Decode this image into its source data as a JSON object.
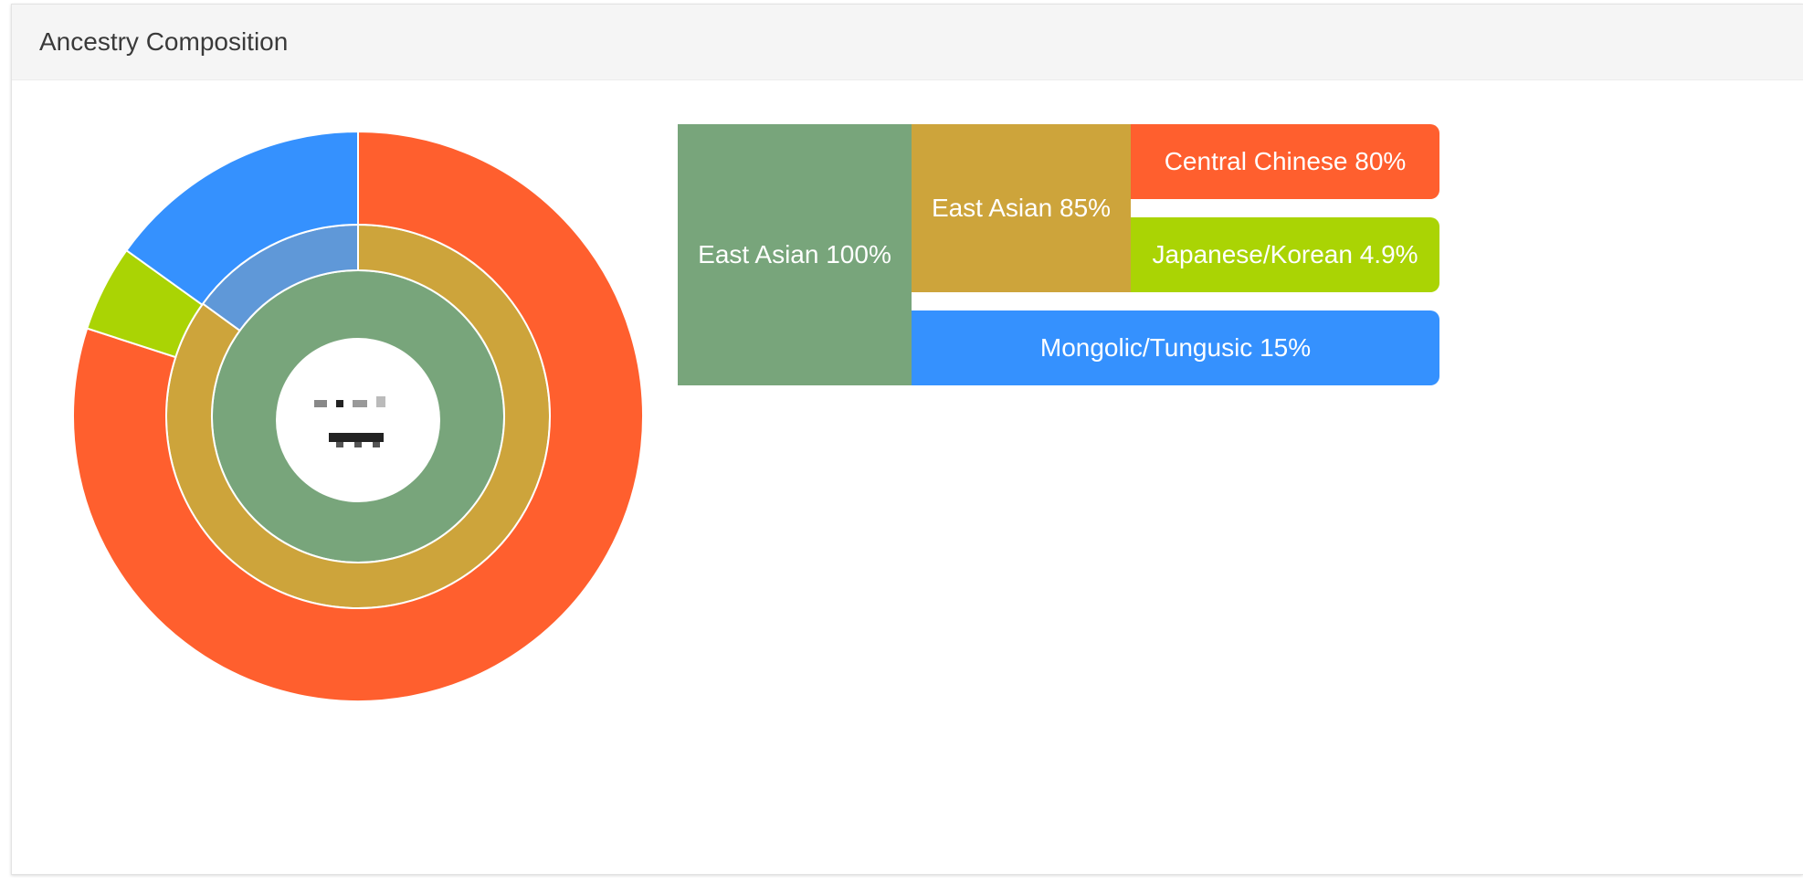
{
  "header": {
    "title": "Ancestry Composition"
  },
  "chart_data": {
    "type": "sunburst",
    "title": "",
    "root": {
      "name": "East Asian",
      "value": 100,
      "label": "East Asian 100%"
    },
    "children": [
      {
        "name": "East Asian",
        "value": 85,
        "label": "East Asian 85%",
        "children": [
          {
            "name": "Central Chinese",
            "value": 80,
            "label": "Central Chinese 80%"
          },
          {
            "name": "Japanese/Korean",
            "value": 4.9,
            "label": "Japanese/Korean 4.9%"
          }
        ]
      },
      {
        "name": "Mongolic/Tungusic",
        "value": 15,
        "label": "Mongolic/Tungusic 15%"
      }
    ]
  },
  "colors": {
    "east_asian_root": "#78a57b",
    "east_asian_85": "#cda43b",
    "central_chinese": "#ff5f2e",
    "japanese_korean": "#aad404",
    "mongolic_tungusic": "#3591fe",
    "mongolic_inner": "#5f98d8"
  }
}
